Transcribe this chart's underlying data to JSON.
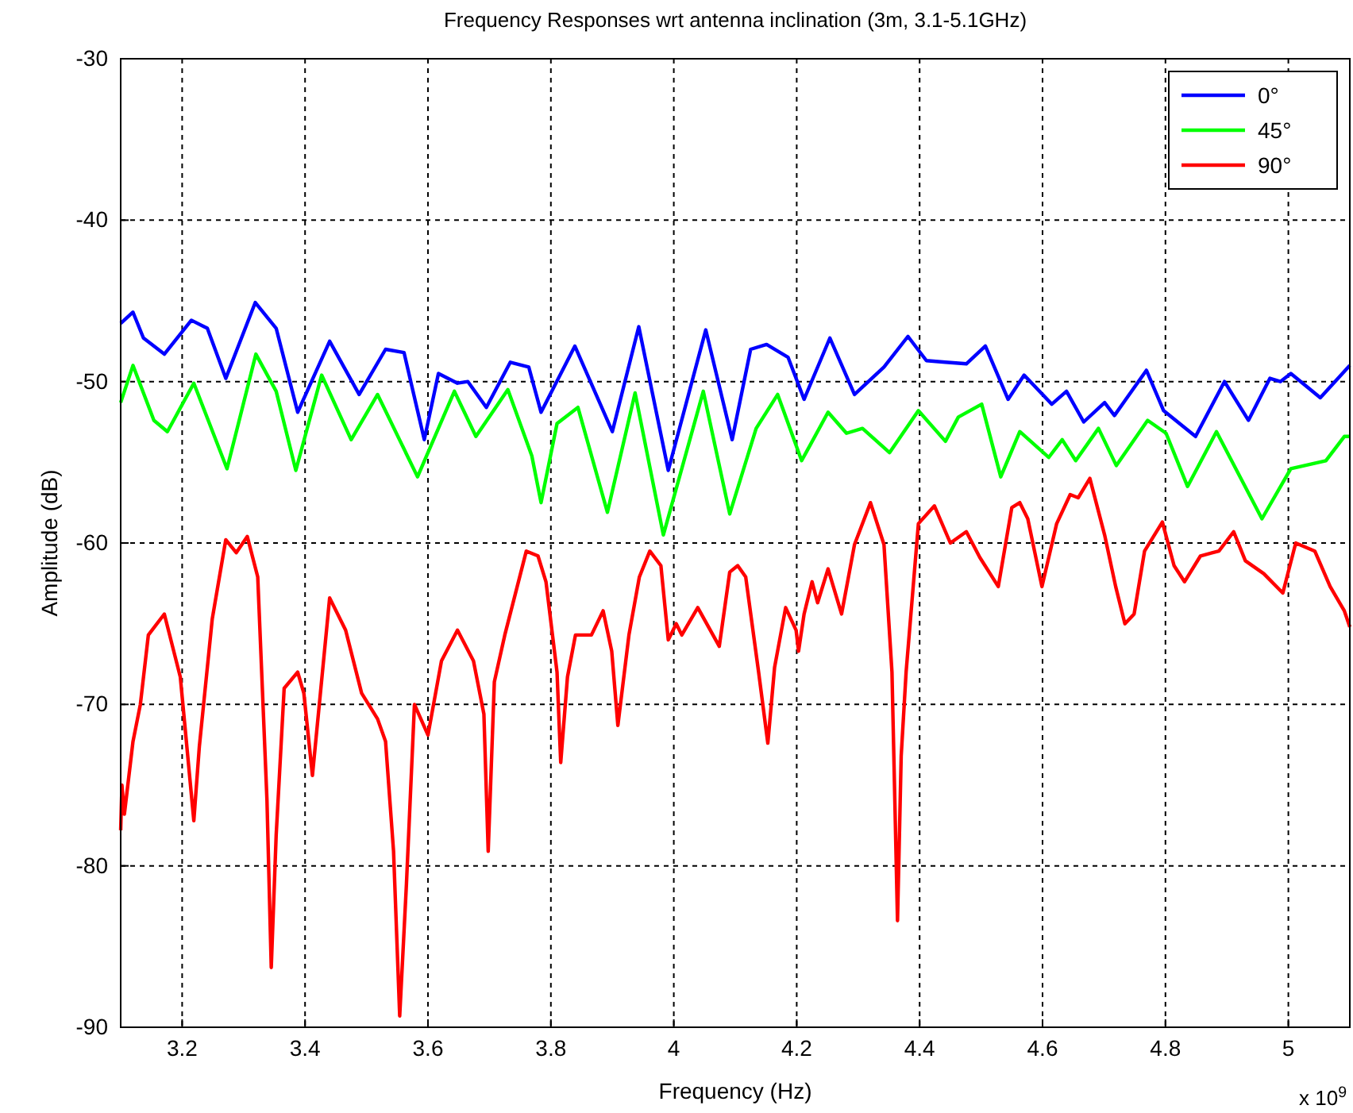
{
  "chart_data": {
    "type": "line",
    "title": "Frequency Responses wrt antenna inclination (3m, 3.1-5.1GHz)",
    "xlabel": "Frequency (Hz)",
    "ylabel": "Amplitude (dB)",
    "annotations": [
      "x 10$^{9}$"
    ],
    "xlim": [
      3.1,
      5.1
    ],
    "ylim": [
      -90,
      -30
    ],
    "xticks": [
      3.2,
      3.4,
      3.6,
      3.8,
      4,
      4.2,
      4.4,
      4.6,
      4.8,
      5
    ],
    "yticks": [
      -90,
      -80,
      -70,
      -60,
      -50,
      -40,
      -30
    ],
    "grid": true,
    "legend": "top right",
    "line_style": "solid",
    "marker": "none",
    "series": [
      {
        "name": "0°",
        "color": "#0000ff",
        "x": [
          3.1,
          3.12,
          3.137,
          3.171,
          3.215,
          3.241,
          3.271,
          3.319,
          3.353,
          3.388,
          3.44,
          3.488,
          3.531,
          3.561,
          3.594,
          3.617,
          3.648,
          3.665,
          3.695,
          3.734,
          3.764,
          3.784,
          3.839,
          3.9,
          3.943,
          3.991,
          4.052,
          4.095,
          4.125,
          4.151,
          4.186,
          4.212,
          4.254,
          4.294,
          4.342,
          4.381,
          4.411,
          4.442,
          4.476,
          4.507,
          4.544,
          4.57,
          4.615,
          4.639,
          4.667,
          4.701,
          4.717,
          4.769,
          4.797,
          4.849,
          4.896,
          4.935,
          4.97,
          4.987,
          5.004,
          5.052,
          5.1
        ],
        "values": [
          -46.4,
          -45.7,
          -47.3,
          -48.3,
          -46.2,
          -46.7,
          -49.8,
          -45.1,
          -46.7,
          -51.9,
          -47.5,
          -50.8,
          -48,
          -48.2,
          -53.6,
          -49.5,
          -50.1,
          -50,
          -51.6,
          -48.8,
          -49.1,
          -51.9,
          -47.8,
          -53.1,
          -46.6,
          -55.5,
          -46.8,
          -53.6,
          -48,
          -47.7,
          -48.5,
          -51.1,
          -47.3,
          -50.8,
          -49.1,
          -47.2,
          -48.7,
          -48.8,
          -48.9,
          -47.8,
          -51.1,
          -49.6,
          -51.4,
          -50.6,
          -52.5,
          -51.3,
          -52.1,
          -49.3,
          -51.8,
          -53.4,
          -50,
          -52.4,
          -49.8,
          -50,
          -49.5,
          -51,
          -49
        ]
      },
      {
        "name": "45°",
        "color": "#00ff00",
        "x": [
          3.1,
          3.12,
          3.154,
          3.176,
          3.219,
          3.273,
          3.32,
          3.353,
          3.385,
          3.427,
          3.475,
          3.518,
          3.583,
          3.643,
          3.678,
          3.73,
          3.769,
          3.784,
          3.81,
          3.844,
          3.892,
          3.937,
          3.983,
          4.048,
          4.091,
          4.134,
          4.169,
          4.208,
          4.251,
          4.281,
          4.307,
          4.351,
          4.398,
          4.442,
          4.463,
          4.501,
          4.532,
          4.563,
          4.61,
          4.632,
          4.654,
          4.691,
          4.72,
          4.771,
          4.801,
          4.836,
          4.883,
          4.957,
          5.004,
          5.061,
          5.091,
          5.1
        ],
        "values": [
          -51.3,
          -49,
          -52.4,
          -53.1,
          -50.1,
          -55.4,
          -48.3,
          -50.6,
          -55.5,
          -49.6,
          -53.6,
          -50.8,
          -55.9,
          -50.6,
          -53.4,
          -50.5,
          -54.6,
          -57.5,
          -52.6,
          -51.6,
          -58.1,
          -50.7,
          -59.5,
          -50.6,
          -58.2,
          -52.9,
          -50.8,
          -54.9,
          -51.9,
          -53.2,
          -52.9,
          -54.4,
          -51.8,
          -53.7,
          -52.2,
          -51.4,
          -55.9,
          -53.1,
          -54.7,
          -53.6,
          -54.9,
          -52.9,
          -55.2,
          -52.4,
          -53.2,
          -56.5,
          -53.1,
          -58.5,
          -55.4,
          -54.9,
          -53.4,
          -53.4
        ]
      },
      {
        "name": "90°",
        "color": "#ff0000",
        "x": [
          3.1,
          3.102,
          3.106,
          3.12,
          3.132,
          3.145,
          3.171,
          3.197,
          3.219,
          3.228,
          3.249,
          3.271,
          3.288,
          3.306,
          3.323,
          3.338,
          3.345,
          3.353,
          3.366,
          3.388,
          3.398,
          3.412,
          3.44,
          3.466,
          3.492,
          3.518,
          3.531,
          3.544,
          3.554,
          3.565,
          3.578,
          3.6,
          3.622,
          3.648,
          3.674,
          3.691,
          3.698,
          3.708,
          3.725,
          3.76,
          3.779,
          3.792,
          3.81,
          3.816,
          3.827,
          3.84,
          3.866,
          3.885,
          3.899,
          3.909,
          3.927,
          3.944,
          3.961,
          3.979,
          3.991,
          4.004,
          4.013,
          4.039,
          4.074,
          4.091,
          4.104,
          4.117,
          4.138,
          4.153,
          4.164,
          4.182,
          4.199,
          4.203,
          4.212,
          4.225,
          4.234,
          4.251,
          4.273,
          4.294,
          4.32,
          4.342,
          4.355,
          4.364,
          4.37,
          4.378,
          4.398,
          4.424,
          4.45,
          4.476,
          4.498,
          4.528,
          4.55,
          4.563,
          4.576,
          4.599,
          4.623,
          4.645,
          4.658,
          4.677,
          4.701,
          4.719,
          4.734,
          4.749,
          4.766,
          4.795,
          4.814,
          4.831,
          4.857,
          4.887,
          4.911,
          4.93,
          4.96,
          4.991,
          5.012,
          5.043,
          5.068,
          5.091,
          5.1
        ],
        "values": [
          -77.8,
          -75,
          -76.8,
          -72.3,
          -70,
          -65.7,
          -64.4,
          -68.3,
          -77.2,
          -72.6,
          -64.7,
          -59.8,
          -60.6,
          -59.6,
          -62.1,
          -75.9,
          -86.3,
          -78.1,
          -69,
          -68,
          -69.3,
          -74.4,
          -63.4,
          -65.4,
          -69.3,
          -70.9,
          -72.3,
          -79.1,
          -89.3,
          -81.1,
          -70,
          -71.9,
          -67.3,
          -65.4,
          -67.3,
          -70.6,
          -79.1,
          -68.6,
          -65.7,
          -60.5,
          -60.8,
          -62.4,
          -68,
          -73.6,
          -68.3,
          -65.7,
          -65.7,
          -64.2,
          -66.7,
          -71.3,
          -65.7,
          -62.1,
          -60.5,
          -61.4,
          -66,
          -65,
          -65.7,
          -64,
          -66.4,
          -61.8,
          -61.4,
          -62.1,
          -68,
          -72.4,
          -67.7,
          -64,
          -65.4,
          -66.7,
          -64.4,
          -62.4,
          -63.7,
          -61.6,
          -64.4,
          -60.1,
          -57.5,
          -60.1,
          -68,
          -83.4,
          -73.2,
          -68,
          -58.8,
          -57.7,
          -60,
          -59.3,
          -60.9,
          -62.7,
          -57.8,
          -57.5,
          -58.5,
          -62.7,
          -58.8,
          -57,
          -57.2,
          -56,
          -59.5,
          -62.7,
          -65,
          -64.4,
          -60.5,
          -58.7,
          -61.4,
          -62.4,
          -60.8,
          -60.5,
          -59.3,
          -61.1,
          -61.9,
          -63.1,
          -60,
          -60.5,
          -62.7,
          -64.2,
          -65.2
        ]
      }
    ]
  }
}
